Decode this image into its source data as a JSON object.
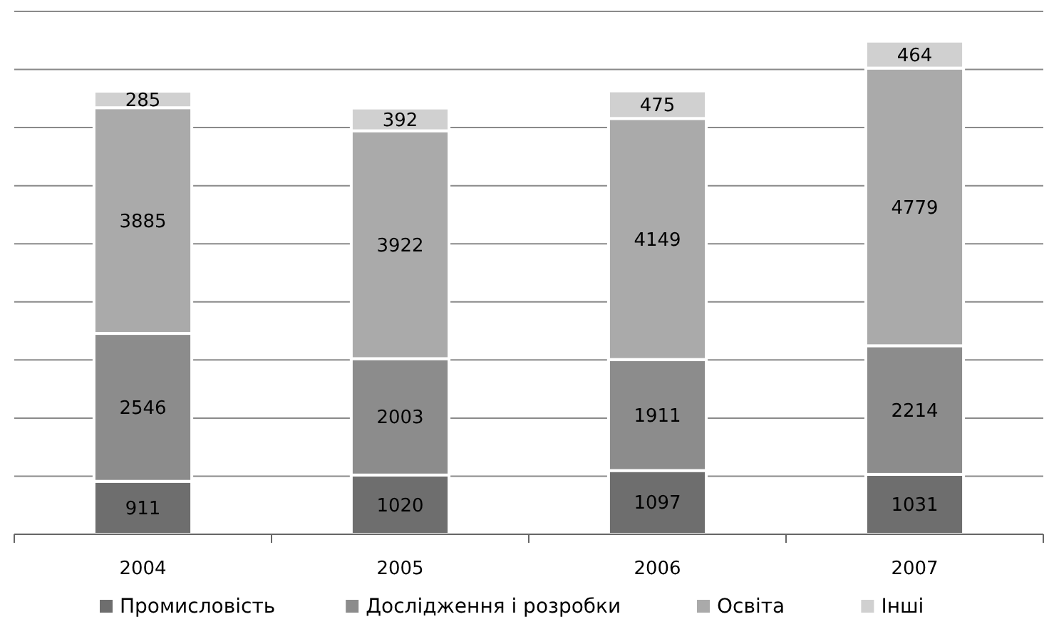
{
  "chart_data": {
    "type": "bar",
    "stacked": true,
    "categories": [
      "2004",
      "2005",
      "2006",
      "2007"
    ],
    "series": [
      {
        "name": "Промисловість",
        "color": "#6e6e6e",
        "values": [
          911,
          1020,
          1097,
          1031
        ]
      },
      {
        "name": "Дослідження і розробки",
        "color": "#8c8c8c",
        "values": [
          2546,
          2003,
          1911,
          2214
        ]
      },
      {
        "name": "Освіта",
        "color": "#aaaaaa",
        "values": [
          3885,
          3922,
          4149,
          4779
        ]
      },
      {
        "name": "Інші",
        "color": "#d0d0d0",
        "values": [
          285,
          392,
          475,
          464
        ]
      }
    ],
    "ylim": [
      0,
      9000
    ],
    "yticks": [
      {
        "value": 0,
        "label": null
      },
      {
        "value": 1000,
        "label": null
      },
      {
        "value": 2000,
        "label": null
      },
      {
        "value": 3000,
        "label": null
      },
      {
        "value": 4000,
        "label": null
      },
      {
        "value": 5000,
        "label": null
      },
      {
        "value": 6000,
        "label": null
      },
      {
        "value": 7000,
        "label": null
      },
      {
        "value": 8000,
        "label": null
      },
      {
        "value": 9000,
        "label": null
      }
    ],
    "tick_labels": "x",
    "grid": "y",
    "data_labels": true,
    "legend": "bottom"
  }
}
